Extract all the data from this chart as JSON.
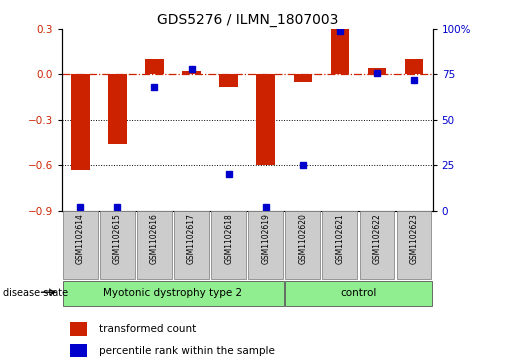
{
  "title": "GDS5276 / ILMN_1807003",
  "samples": [
    "GSM1102614",
    "GSM1102615",
    "GSM1102616",
    "GSM1102617",
    "GSM1102618",
    "GSM1102619",
    "GSM1102620",
    "GSM1102621",
    "GSM1102622",
    "GSM1102623"
  ],
  "red_values": [
    -0.63,
    -0.46,
    0.1,
    0.02,
    -0.08,
    -0.6,
    -0.05,
    0.3,
    0.04,
    0.1
  ],
  "blue_values_pct": [
    2,
    2,
    68,
    78,
    20,
    2,
    25,
    99,
    76,
    72
  ],
  "groups": [
    {
      "label": "Myotonic dystrophy type 2",
      "start": 0,
      "end": 5
    },
    {
      "label": "control",
      "start": 6,
      "end": 9
    }
  ],
  "group_color": "#90EE90",
  "ylim_left": [
    -0.9,
    0.3
  ],
  "yticks_left": [
    -0.9,
    -0.6,
    -0.3,
    0.0,
    0.3
  ],
  "ylim_right": [
    0,
    100
  ],
  "yticks_right": [
    0,
    25,
    50,
    75,
    100
  ],
  "ytick_right_labels": [
    "0",
    "25",
    "50",
    "75",
    "100%"
  ],
  "bar_color": "#CC2200",
  "dot_color": "#0000CC",
  "background_color": "#ffffff",
  "hline_color": "#CC2200",
  "grid_color": "#000000",
  "legend_label_red": "transformed count",
  "legend_label_blue": "percentile rank within the sample",
  "disease_state_label": "disease state",
  "bar_width": 0.5,
  "dot_size": 25,
  "box_color": "#cccccc"
}
